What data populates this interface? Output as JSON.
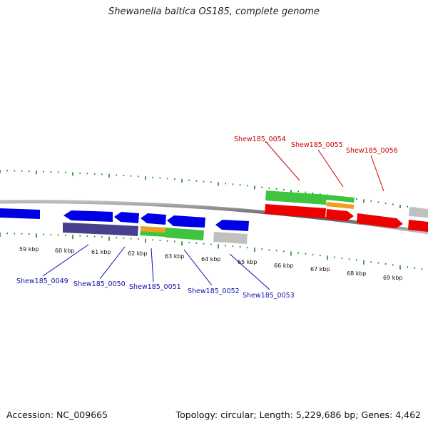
{
  "title": "Shewanella baltica OS185, complete genome",
  "footer": {
    "accession": "Accession: NC_009665",
    "topology": "Topology: circular; Length: 5,229,686 bp; Genes: 4,462"
  },
  "colors": {
    "blue": "#0000e6",
    "purple": "#4a3f8c",
    "green": "#3fc43f",
    "orange": "#f0a020",
    "gray": "#c0c0c0",
    "red": "#ee0000",
    "tick": "#1a8c1a",
    "label_blue": "#1010aa",
    "label_red": "#cc0000"
  },
  "kbp_labels": [
    "59 kbp",
    "60 kbp",
    "61 kbp",
    "62 kbp",
    "63 kbp",
    "64 kbp",
    "65 kbp",
    "66 kbp",
    "67 kbp",
    "68 kbp",
    "69 kbp"
  ],
  "gene_labels": [
    "Shew185_0049",
    "Shew185_0050",
    "Shew185_0051",
    "Shew185_0052",
    "Shew185_0053",
    "Shew185_0054",
    "Shew185_0055",
    "Shew185_0056"
  ]
}
